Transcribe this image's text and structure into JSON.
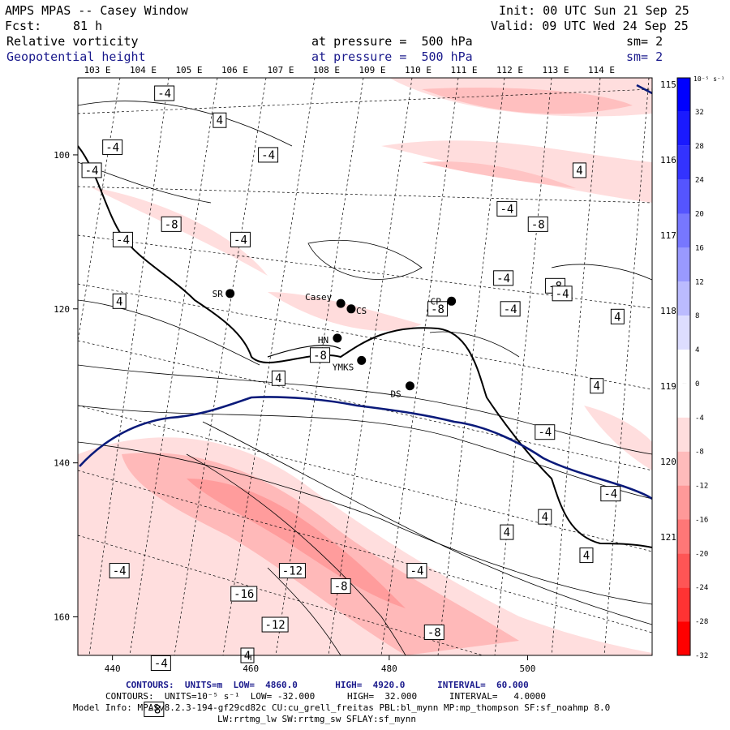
{
  "header": {
    "title": "AMPS MPAS -- Casey Window",
    "init": "Init: 00 UTC Sun 21 Sep 25",
    "fcst_label": "Fcst:",
    "fcst_value": "81 h",
    "valid": "Valid: 09 UTC Wed 24 Sep 25",
    "field1_name": "Relative vorticity",
    "field1_level": "at pressure =  500 hPa",
    "field1_sm": "sm= 2",
    "field2_name": "Geopotential height",
    "field2_level": "at pressure =  500 hPa",
    "field2_sm": "sm= 2"
  },
  "chart_data": {
    "type": "heatmap",
    "title": "Relative vorticity and Geopotential height at 500 hPa",
    "x_ticks": [
      "440",
      "460",
      "480",
      "500"
    ],
    "y_ticks": [
      "100",
      "120",
      "140",
      "160"
    ],
    "xlim": [
      435,
      518
    ],
    "ylim": [
      165,
      90
    ],
    "lon_ticks_top": [
      "103 E",
      "104 E",
      "105 E",
      "106 E",
      "107 E",
      "108 E",
      "109 E",
      "110 E",
      "111 E",
      "112 E",
      "113 E",
      "114 E"
    ],
    "lon_ticks_right": [
      "115 E",
      "116 E",
      "117 E",
      "118 E",
      "119 E",
      "120 E",
      "121 E"
    ],
    "colorbar": {
      "unit_label": "10⁻⁵ s⁻¹",
      "labels": [
        "32",
        "28",
        "24",
        "20",
        "16",
        "12",
        "8",
        "4",
        "0",
        "-4",
        "-8",
        "-12",
        "-16",
        "-20",
        "-24",
        "-28",
        "-32"
      ],
      "colors": [
        "#0000ff",
        "#1a1aff",
        "#3333ff",
        "#5555ff",
        "#7777ff",
        "#9999ff",
        "#bbbbff",
        "#ddddff",
        "#ffffff",
        "#ffffff",
        "#ffdddd",
        "#ffbbbb",
        "#ff9999",
        "#ff7777",
        "#ff5555",
        "#ff3333",
        "#ff0000"
      ]
    },
    "stations": [
      {
        "name": "SR",
        "x": 457,
        "y": 118
      },
      {
        "name": "Casey",
        "x": 473,
        "y": 119.3
      },
      {
        "name": "CS",
        "x": 474.5,
        "y": 120
      },
      {
        "name": "CP",
        "x": 489,
        "y": 119
      },
      {
        "name": "HN",
        "x": 472.5,
        "y": 123.8
      },
      {
        "name": "YMKS",
        "x": 476,
        "y": 126.7
      },
      {
        "name": "DS",
        "x": 483,
        "y": 130
      }
    ],
    "vorticity_labels": [
      {
        "t": "-4",
        "x": 447.5,
        "y": 92
      },
      {
        "t": "4",
        "x": 455.5,
        "y": 95.5
      },
      {
        "t": "-4",
        "x": 440,
        "y": 99
      },
      {
        "t": "-4",
        "x": 437,
        "y": 102
      },
      {
        "t": "-4",
        "x": 462.5,
        "y": 100
      },
      {
        "t": "-8",
        "x": 448.5,
        "y": 109
      },
      {
        "t": "-4",
        "x": 441.5,
        "y": 111
      },
      {
        "t": "-4",
        "x": 458.5,
        "y": 111
      },
      {
        "t": "4",
        "x": 441,
        "y": 119
      },
      {
        "t": "-8",
        "x": 470,
        "y": 126
      },
      {
        "t": "4",
        "x": 464,
        "y": 129
      },
      {
        "t": "-4",
        "x": 496.5,
        "y": 116
      },
      {
        "t": "-8",
        "x": 504,
        "y": 117
      },
      {
        "t": "-8",
        "x": 501.5,
        "y": 109
      },
      {
        "t": "-4",
        "x": 497,
        "y": 107
      },
      {
        "t": "4",
        "x": 507.5,
        "y": 102
      },
      {
        "t": "-4",
        "x": 505,
        "y": 118
      },
      {
        "t": "-8",
        "x": 487,
        "y": 120
      },
      {
        "t": "-4",
        "x": 497.5,
        "y": 120
      },
      {
        "t": "4",
        "x": 513,
        "y": 121
      },
      {
        "t": "4",
        "x": 510,
        "y": 130
      },
      {
        "t": "-4",
        "x": 502.5,
        "y": 136
      },
      {
        "t": "-4",
        "x": 512,
        "y": 144
      },
      {
        "t": "4",
        "x": 497,
        "y": 149
      },
      {
        "t": "4",
        "x": 502.5,
        "y": 147
      },
      {
        "t": "4",
        "x": 508.5,
        "y": 152
      },
      {
        "t": "-4",
        "x": 441,
        "y": 154
      },
      {
        "t": "-12",
        "x": 466,
        "y": 154
      },
      {
        "t": "-16",
        "x": 459,
        "y": 157
      },
      {
        "t": "-8",
        "x": 473,
        "y": 156
      },
      {
        "t": "-4",
        "x": 484,
        "y": 154
      },
      {
        "t": "-12",
        "x": 463.5,
        "y": 161
      },
      {
        "t": "4",
        "x": 459.5,
        "y": 165
      },
      {
        "t": "-4",
        "x": 447,
        "y": 166
      },
      {
        "t": "-8",
        "x": 486.5,
        "y": 162
      },
      {
        "t": "-8",
        "x": 446,
        "y": 172
      }
    ],
    "height_contours": {
      "units": "m",
      "low": "4860.0",
      "high": "4920.0",
      "interval": "60.000"
    },
    "vorticity_contours": {
      "units": "10⁻⁵ s⁻¹",
      "low": "-32.000",
      "high": "32.000",
      "interval": "4.0000"
    }
  },
  "footer": {
    "line1": "CONTOURS:  UNITS=m  LOW=  4860.0       HIGH=  4920.0      INTERVAL=  60.000",
    "line2": "CONTOURS:  UNITS=10⁻⁵ s⁻¹  LOW= -32.000      HIGH=  32.000      INTERVAL=   4.0000",
    "line3": "Model Info: MPASv8.2.3-194-gf29cd82c CU:cu_grell_freitas PBL:bl_mynn MP:mp_thompson SF:sf_noahmp 8.0",
    "line4": "LW:rrtmg_lw SW:rrtmg_sw SFLAY:sf_mynn"
  }
}
